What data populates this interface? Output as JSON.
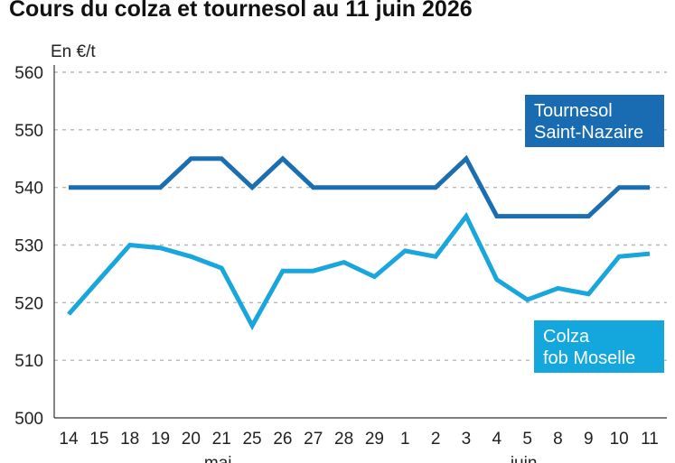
{
  "chart_data": {
    "type": "line",
    "title": "Cours du colza et tournesol au 11 juin 2026",
    "ylabel": "En €/t",
    "xlabel": "",
    "ylim": [
      500,
      560
    ],
    "yticks": [
      500,
      510,
      520,
      530,
      540,
      550,
      560
    ],
    "grid": true,
    "categories": [
      "14",
      "15",
      "18",
      "19",
      "20",
      "21",
      "25",
      "26",
      "27",
      "28",
      "29",
      "1",
      "2",
      "3",
      "4",
      "5",
      "8",
      "9",
      "10",
      "11"
    ],
    "month_labels": [
      {
        "label": "mai",
        "at_category_index": 5
      },
      {
        "label": "juin",
        "at_category_index": 15
      }
    ],
    "series": [
      {
        "name_lines": [
          "Tournesol",
          "Saint-Nazaire"
        ],
        "color": "#1b6fb0",
        "legend_color": "#1a6cb2",
        "values": [
          540,
          540,
          540,
          540,
          545,
          545,
          540,
          545,
          540,
          540,
          540,
          540,
          540,
          545,
          535,
          535,
          535,
          535,
          540,
          540
        ]
      },
      {
        "name_lines": [
          "Colza",
          "fob Moselle"
        ],
        "color": "#19a6dc",
        "legend_color": "#13a7de",
        "values": [
          518,
          524,
          530,
          529.5,
          528,
          526,
          516,
          525.5,
          525.5,
          527,
          524.5,
          529,
          528,
          535,
          524,
          520.5,
          522.5,
          521.5,
          528,
          528.5
        ]
      }
    ]
  }
}
